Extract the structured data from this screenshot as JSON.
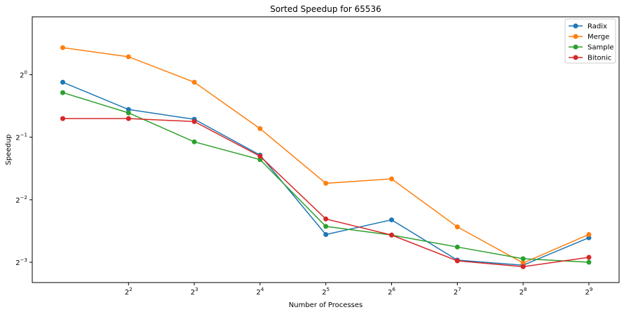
{
  "chart_data": {
    "type": "line",
    "title": "Sorted Speedup for 65536",
    "xlabel": "Number of Processes",
    "ylabel": "Speedup",
    "x_scale": "log2",
    "y_scale": "log2",
    "x": [
      2,
      4,
      8,
      16,
      32,
      64,
      128,
      256,
      512
    ],
    "xlim": [
      1.45,
      704
    ],
    "ylim": [
      0.0998,
      1.9
    ],
    "x_ticks": [
      {
        "value": 4,
        "base": "2",
        "exp": "2"
      },
      {
        "value": 8,
        "base": "2",
        "exp": "3"
      },
      {
        "value": 16,
        "base": "2",
        "exp": "4"
      },
      {
        "value": 32,
        "base": "2",
        "exp": "5"
      },
      {
        "value": 64,
        "base": "2",
        "exp": "6"
      },
      {
        "value": 128,
        "base": "2",
        "exp": "7"
      },
      {
        "value": 256,
        "base": "2",
        "exp": "8"
      },
      {
        "value": 512,
        "base": "2",
        "exp": "9"
      }
    ],
    "y_ticks": [
      {
        "value": 1,
        "base": "2",
        "exp": "0"
      },
      {
        "value": 0.5,
        "base": "2",
        "exp": "−1"
      },
      {
        "value": 0.25,
        "base": "2",
        "exp": "−2"
      },
      {
        "value": 0.125,
        "base": "2",
        "exp": "−3"
      }
    ],
    "legend_position": "top-right",
    "grid": false,
    "series": [
      {
        "name": "Radix",
        "color": "#1f77b4",
        "values": [
          0.92,
          0.68,
          0.61,
          0.41,
          0.17,
          0.2,
          0.128,
          0.121,
          0.164
        ]
      },
      {
        "name": "Merge",
        "color": "#ff7f0e",
        "values": [
          1.35,
          1.22,
          0.92,
          0.55,
          0.3,
          0.315,
          0.185,
          0.124,
          0.17
        ]
      },
      {
        "name": "Sample",
        "color": "#2ca02c",
        "values": [
          0.82,
          0.655,
          0.475,
          0.39,
          0.186,
          0.169,
          0.148,
          0.13,
          0.125
        ]
      },
      {
        "name": "Bitonic",
        "color": "#d62728",
        "values": [
          0.615,
          0.615,
          0.595,
          0.405,
          0.202,
          0.169,
          0.127,
          0.119,
          0.132
        ]
      }
    ]
  }
}
